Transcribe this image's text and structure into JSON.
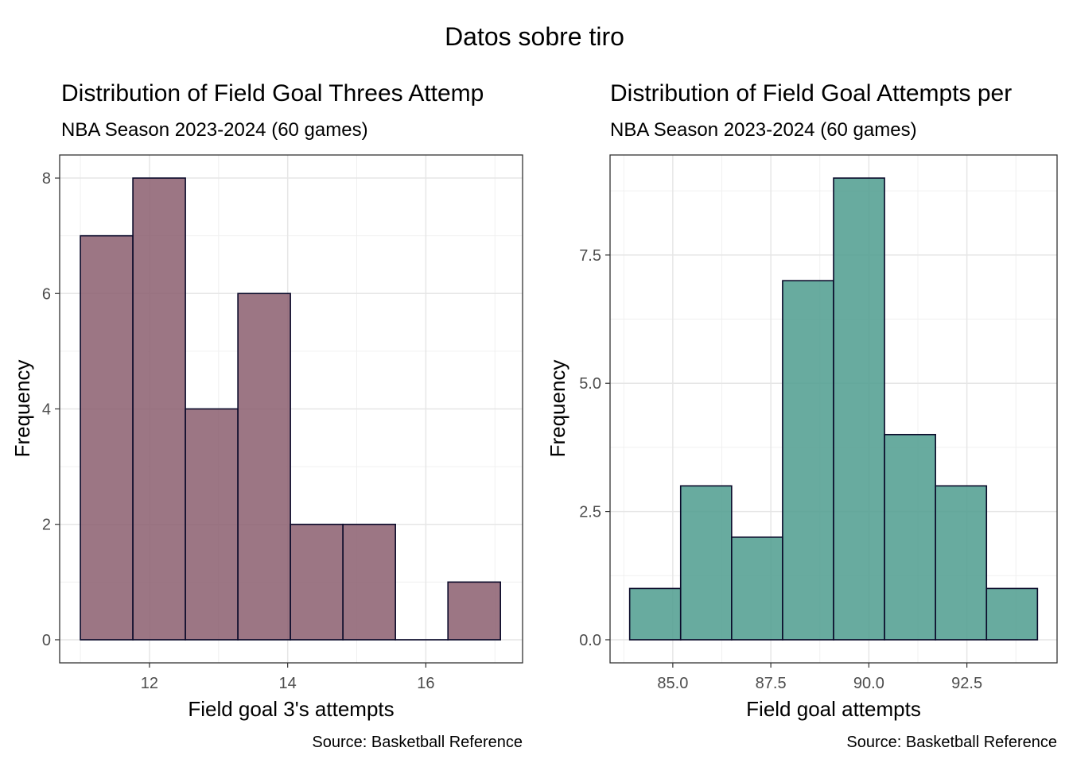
{
  "figure": {
    "title": "Datos sobre tiro"
  },
  "chart_data": [
    {
      "type": "bar",
      "histogram": true,
      "title": "Distribution of Field Goal Threes Attemp",
      "subtitle": "NBA Season 2023-2024 (60 games)",
      "xlabel": "Field goal 3's attempts",
      "ylabel": "Frequency",
      "caption": "Source: Basketball Reference",
      "bin_edges": [
        11.0,
        11.76,
        12.52,
        13.28,
        14.04,
        14.8,
        15.56,
        16.32,
        17.08
      ],
      "values": [
        7,
        8,
        4,
        6,
        2,
        2,
        0,
        1
      ],
      "xlim": [
        10.7,
        17.4
      ],
      "ylim": [
        -0.4,
        8.4
      ],
      "xticks": [
        12,
        14,
        16
      ],
      "xtick_labels": [
        "12",
        "14",
        "16"
      ],
      "yticks": [
        0,
        2,
        4,
        6,
        8
      ],
      "ytick_labels": [
        "0",
        "2",
        "4",
        "6",
        "8"
      ],
      "fill": "#8B5E6E",
      "grid": true
    },
    {
      "type": "bar",
      "histogram": true,
      "title": "Distribution of Field Goal Attempts per",
      "subtitle": "NBA Season 2023-2024 (60 games)",
      "xlabel": "Field goal attempts",
      "ylabel": "Frequency",
      "caption": "Source: Basketball Reference",
      "bin_edges": [
        83.9,
        85.2,
        86.5,
        87.8,
        89.1,
        90.4,
        91.7,
        93.0,
        94.3
      ],
      "values": [
        1,
        3,
        2,
        7,
        9,
        4,
        3,
        1
      ],
      "xlim": [
        83.4,
        94.8
      ],
      "ylim": [
        -0.45,
        9.45
      ],
      "xticks": [
        85,
        87.5,
        90,
        92.5
      ],
      "xtick_labels": [
        "85.0",
        "87.5",
        "90.0",
        "92.5"
      ],
      "yticks": [
        0,
        2.5,
        5,
        7.5
      ],
      "ytick_labels": [
        "0.0",
        "2.5",
        "5.0",
        "7.5"
      ],
      "fill": "#4E9C8E",
      "grid": true
    }
  ]
}
